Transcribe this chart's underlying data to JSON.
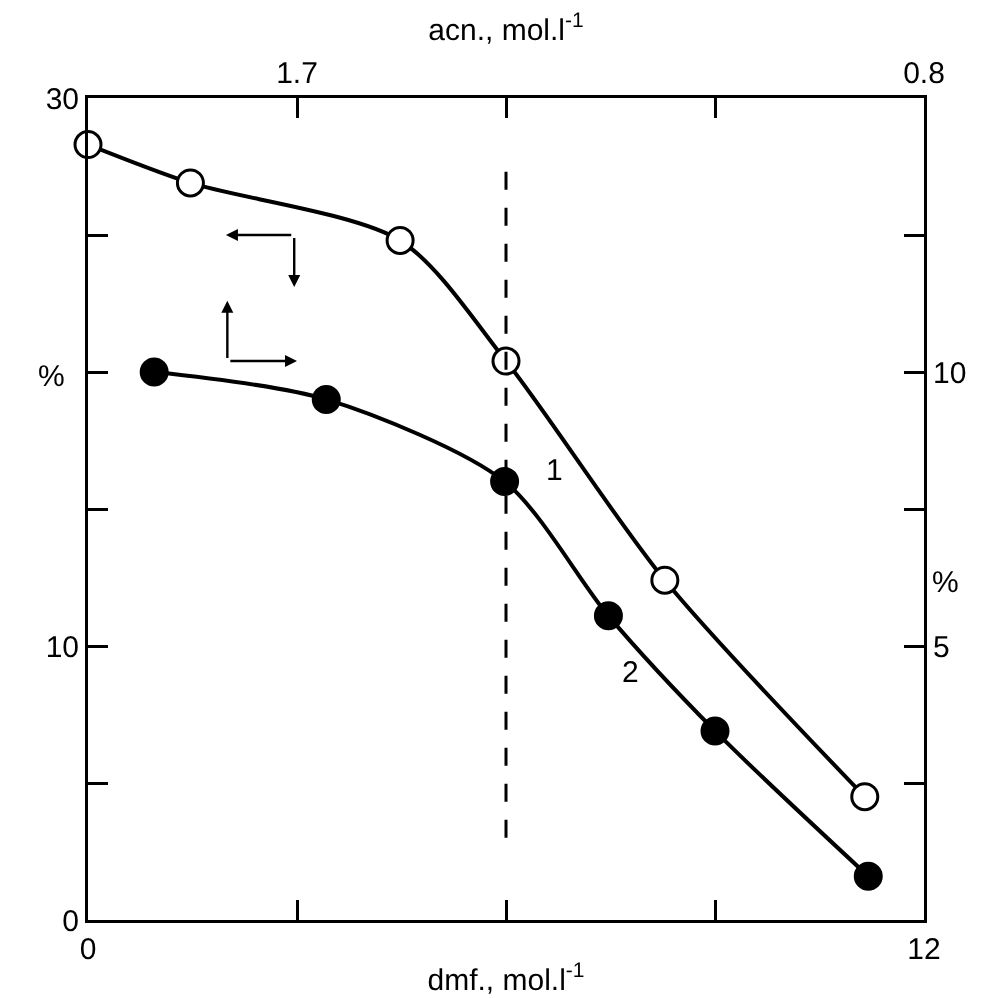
{
  "chart_data": {
    "type": "line",
    "xlabel": "dmf., mol.l$^{-1}$",
    "x2label": "acn., mol.l$^{-1}$",
    "ylabel": "%",
    "y2label": "%",
    "xlim": [
      0,
      12
    ],
    "xticks": [
      0,
      {
        "value": 3,
        "label": null
      },
      {
        "value": 6,
        "label": null
      },
      {
        "value": 9,
        "label": null
      },
      12
    ],
    "x2lim": [
      2.0,
      0.8
    ],
    "x2ticks": [
      1.7,
      {
        "value": 1.4,
        "label": null
      },
      {
        "value": 1.1,
        "label": null
      },
      0.8
    ],
    "ylim": [
      0,
      30
    ],
    "yticks": [
      0,
      {
        "value": 5,
        "label": null
      },
      10,
      {
        "value": 15,
        "label": null
      },
      {
        "value": 20,
        "label": null
      },
      {
        "value": 25,
        "label": null
      },
      30
    ],
    "y2lim": [
      0,
      15
    ],
    "y2ticks": [
      {
        "value": 2.5,
        "label": null
      },
      5,
      {
        "value": 7.5,
        "label": null
      },
      10,
      {
        "value": 12.5,
        "label": null
      }
    ],
    "series": [
      {
        "name": "1",
        "color": "#000000",
        "x": [
          0,
          1.47,
          4.48,
          6.0,
          8.28,
          11.15
        ],
        "values": [
          28.3,
          26.9,
          24.8,
          20.4,
          12.4,
          4.5
        ]
      },
      {
        "name": "2",
        "color": "#000000",
        "axis": "y2",
        "x": [
          0.95,
          3.42,
          5.98,
          7.47,
          9.0,
          11.2
        ],
        "values": [
          10.0,
          9.5,
          8.0,
          5.55,
          3.45,
          0.8
        ]
      }
    ],
    "ref_lines": [
      {
        "axis": "x",
        "value": 6,
        "line_style": "dashed"
      }
    ],
    "marker": "circle",
    "line_style": "solid"
  }
}
